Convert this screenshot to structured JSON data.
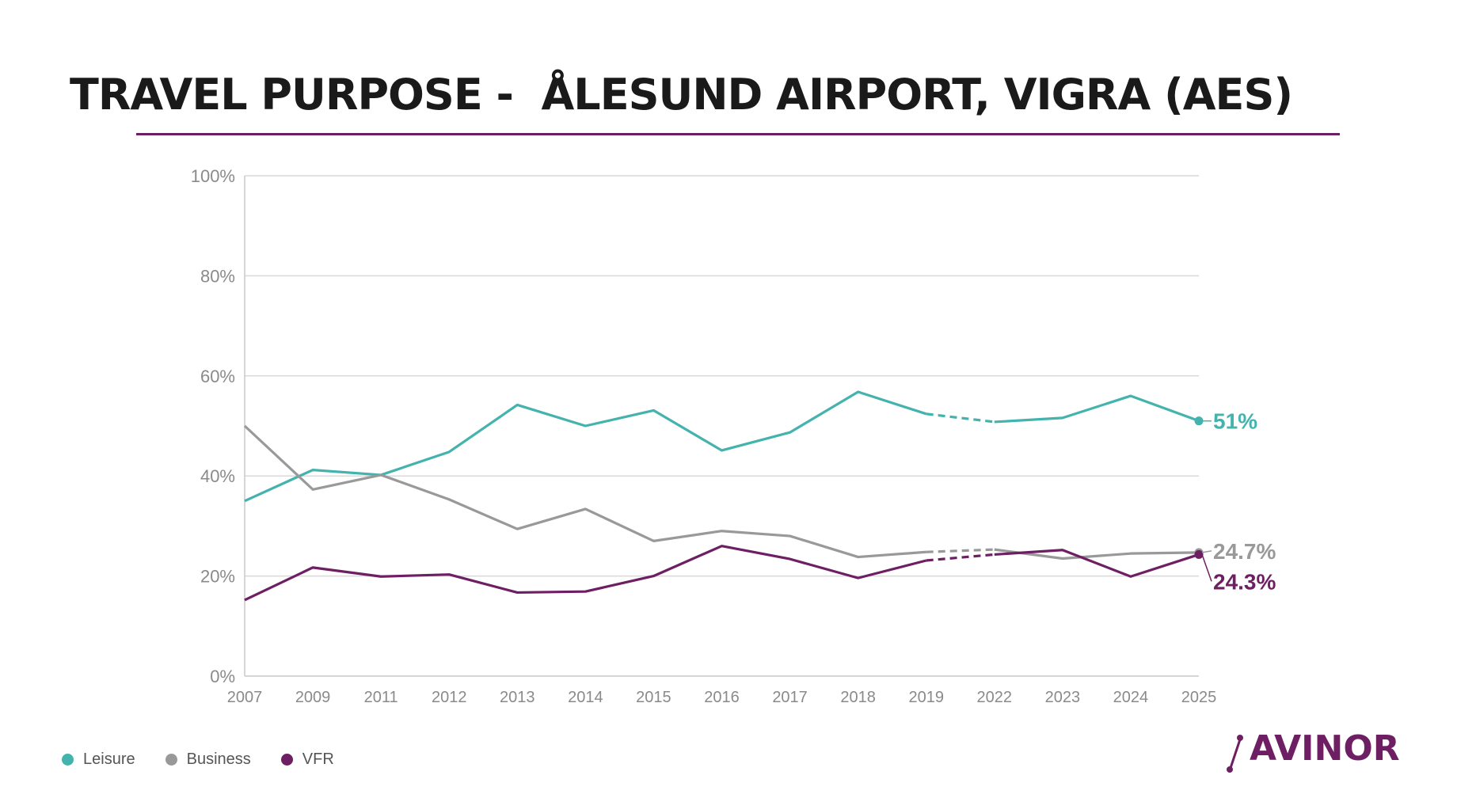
{
  "page": {
    "title": "TRAVEL PURPOSE -  ÅLESUND AIRPORT, VIGRA (AES)",
    "logo_text": "AVINOR"
  },
  "colors": {
    "leisure": "#44b3ad",
    "business": "#999999",
    "vfr": "#6e1f63",
    "rule": "#6e1f63",
    "grid": "#d9d9d9",
    "tick": "#8a8a8a"
  },
  "legend": [
    {
      "label": "Leisure",
      "color": "#44b3ad"
    },
    {
      "label": "Business",
      "color": "#999999"
    },
    {
      "label": "VFR",
      "color": "#6e1f63"
    }
  ],
  "chart_data": {
    "type": "line",
    "title": "",
    "xlabel": "",
    "ylabel": "",
    "categories": [
      "2007",
      "2009",
      "2011",
      "2012",
      "2013",
      "2014",
      "2015",
      "2016",
      "2017",
      "2018",
      "2019",
      "2022",
      "2023",
      "2024",
      "2025"
    ],
    "ylim": [
      0,
      100
    ],
    "y_ticks": [
      "0%",
      "20%",
      "40%",
      "60%",
      "80%",
      "100%"
    ],
    "y_tick_values": [
      0,
      20,
      40,
      60,
      80,
      100
    ],
    "grid": true,
    "legend_position": "bottom-left",
    "dashed_segment": [
      "2019",
      "2022"
    ],
    "series": [
      {
        "name": "Leisure",
        "key": "leisure",
        "values": [
          35,
          41.2,
          40.2,
          44.8,
          54.2,
          50,
          53.1,
          45.1,
          48.7,
          56.8,
          52.4,
          50.8,
          51.6,
          56,
          51
        ],
        "end_label": "51%"
      },
      {
        "name": "Business",
        "key": "business",
        "values": [
          50,
          37.3,
          40.2,
          35.3,
          29.4,
          33.4,
          27,
          29,
          28,
          23.8,
          24.8,
          25.3,
          23.5,
          24.5,
          24.7
        ],
        "end_label": "24.7%"
      },
      {
        "name": "VFR",
        "key": "vfr",
        "values": [
          15.2,
          21.7,
          19.9,
          20.3,
          16.7,
          16.9,
          20,
          26,
          23.4,
          19.6,
          23.1,
          24.3,
          25.2,
          19.9,
          24.3
        ],
        "end_label": "24.3%"
      }
    ]
  }
}
